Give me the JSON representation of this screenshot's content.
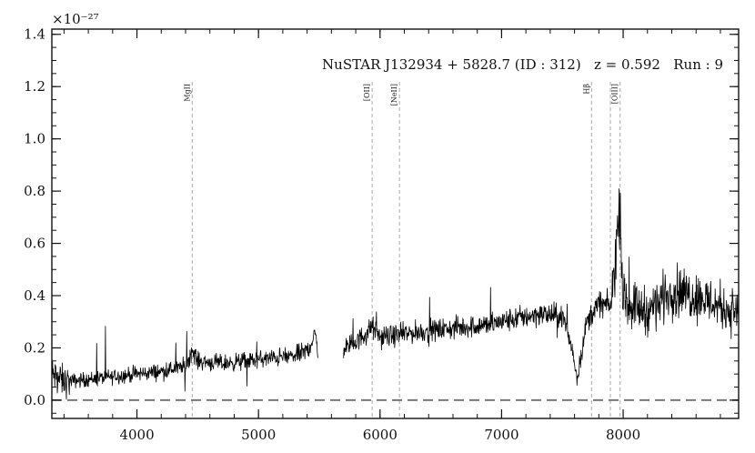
{
  "chart_data": {
    "type": "line",
    "title": "NuSTAR J132934 + 5828.7 (ID : 312)   z = 0.592   Run : 9",
    "xlabel": "",
    "ylabel": "",
    "y_multiplier_label": "×10⁻²⁷",
    "xlim": [
      3300,
      8950
    ],
    "ylim": [
      -0.07,
      1.42
    ],
    "grid": false,
    "x_ticks": [
      4000,
      5000,
      6000,
      7000,
      8000
    ],
    "x_tick_labels": [
      "4000",
      "5000",
      "6000",
      "7000",
      "8000"
    ],
    "y_ticks": [
      0.0,
      0.2,
      0.4,
      0.6,
      0.8,
      1.0,
      1.2,
      1.4
    ],
    "y_tick_labels": [
      "0.0",
      "0.2",
      "0.4",
      "0.6",
      "0.8",
      "1.0",
      "1.2",
      "1.4"
    ],
    "zero_line": 0.0,
    "emission_lines": [
      {
        "label": "MgII",
        "x": 4455
      },
      {
        "label": "[OII]",
        "x": 5935
      },
      {
        "label": "[NeII]",
        "x": 6160
      },
      {
        "label": "Hβ",
        "x": 7740
      },
      {
        "label": "",
        "x": 7895
      },
      {
        "label": "[OIII]",
        "x": 7975
      }
    ],
    "series": [
      {
        "segments": [
          {
            "x": [
              3300,
              3400,
              3600,
              3800,
              4000,
              4200,
              4400,
              4455,
              4500,
              4700,
              4900,
              5100,
              5300,
              5400,
              5470,
              5490
            ],
            "y": [
              0.1,
              0.07,
              0.08,
              0.09,
              0.1,
              0.11,
              0.13,
              0.19,
              0.15,
              0.14,
              0.15,
              0.16,
              0.17,
              0.19,
              0.25,
              0.17
            ]
          },
          {
            "x": [
              5700,
              5800,
              5935,
              6000,
              6160,
              6300,
              6500,
              6700,
              6900,
              7100,
              7300,
              7500,
              7580,
              7620,
              7700,
              7800,
              7900,
              7975,
              8000,
              8200,
              8400,
              8600,
              8800,
              8950
            ],
            "y": [
              0.2,
              0.22,
              0.28,
              0.24,
              0.25,
              0.26,
              0.27,
              0.28,
              0.29,
              0.31,
              0.33,
              0.32,
              0.2,
              0.08,
              0.3,
              0.37,
              0.36,
              0.75,
              0.38,
              0.34,
              0.42,
              0.4,
              0.36,
              0.33
            ]
          }
        ]
      }
    ]
  }
}
